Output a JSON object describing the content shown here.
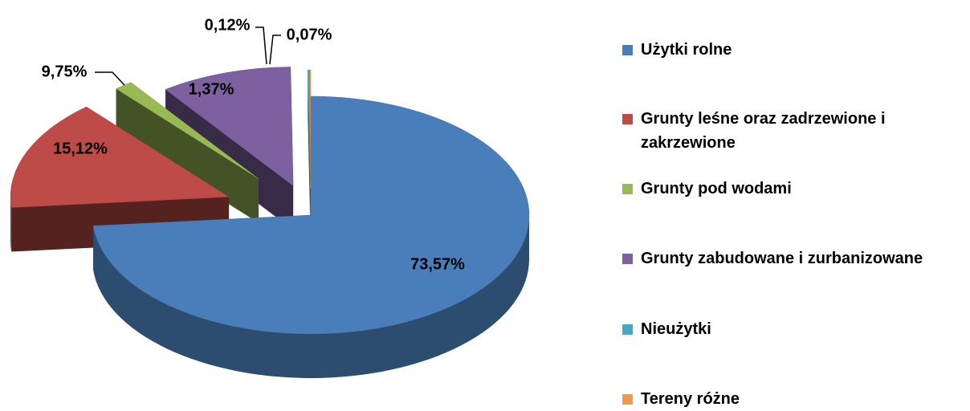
{
  "chart_data": {
    "type": "pie",
    "categories": [
      "Użytki rolne",
      "Grunty leśne oraz zadrzewione i zakrzewione",
      "Grunty pod wodami",
      "Grunty zabudowane i zurbanizowane",
      "Nieużytki",
      "Tereny różne"
    ],
    "values": [
      73.57,
      15.12,
      1.37,
      9.75,
      0.12,
      0.07
    ],
    "value_labels": [
      "73,57%",
      "15,12%",
      "1,37%",
      "9,75%",
      "0,12%",
      "0,07%"
    ],
    "colors": [
      "#4a7ebb",
      "#be4b48",
      "#98b954",
      "#7d60a0",
      "#46aac5",
      "#f79646"
    ],
    "legend": "right"
  }
}
